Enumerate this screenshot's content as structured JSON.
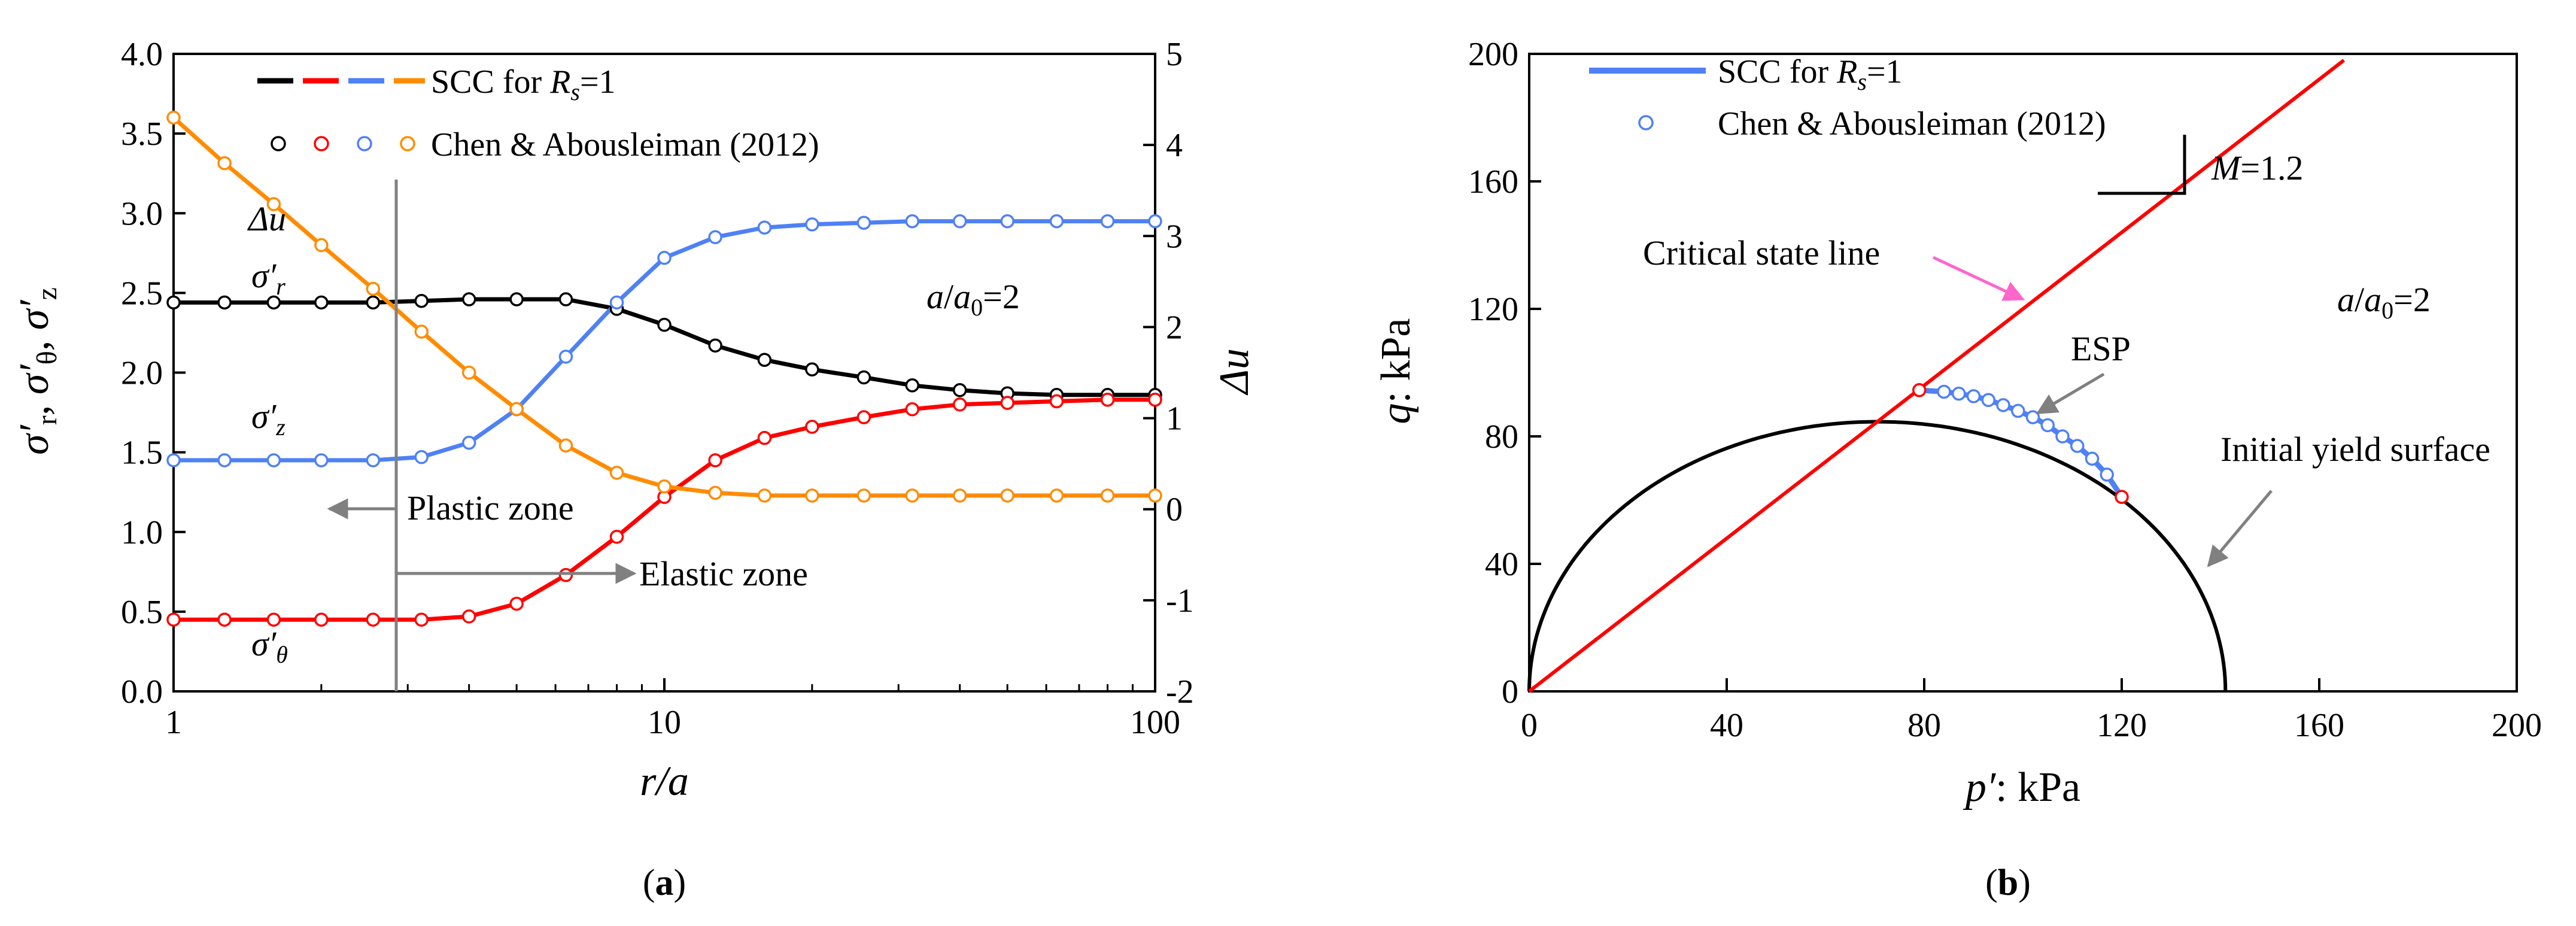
{
  "chart_data": [
    {
      "panel": "a",
      "caption": "(a)",
      "type": "line",
      "x_scale": "log",
      "xlim": [
        1,
        100
      ],
      "ylim": [
        0,
        4
      ],
      "y2lim": [
        -2,
        5
      ],
      "xlabel": "r/a",
      "ylabel": "σ'r, σ'θ, σ'z",
      "y2label": "Δu",
      "x_ticks": [
        "1",
        "10",
        "100"
      ],
      "y_ticks": [
        "0.0",
        "0.5",
        "1.0",
        "1.5",
        "2.0",
        "2.5",
        "3.0",
        "3.5",
        "4.0"
      ],
      "y2_ticks": [
        "-2",
        "-1",
        "0",
        "1",
        "2",
        "3",
        "4",
        "5"
      ],
      "legend": {
        "line_label": "SCC for Rs=1",
        "marker_label": "Chen & Abousleiman (2012)",
        "colors": [
          "#000000",
          "#ff0000",
          "#4f81f5",
          "#ff8c00"
        ]
      },
      "series": [
        {
          "name": "σ'r",
          "axis": "left",
          "color": "#000000",
          "x": [
            1,
            1.27,
            1.6,
            2.0,
            2.55,
            3.2,
            4.0,
            5.0,
            6.3,
            8.0,
            10,
            12.7,
            16,
            20,
            25.5,
            32,
            40,
            50,
            63,
            80,
            100
          ],
          "y": [
            2.44,
            2.44,
            2.44,
            2.44,
            2.44,
            2.45,
            2.46,
            2.46,
            2.46,
            2.4,
            2.3,
            2.17,
            2.08,
            2.02,
            1.97,
            1.92,
            1.89,
            1.87,
            1.86,
            1.86,
            1.86
          ]
        },
        {
          "name": "σ'θ",
          "axis": "left",
          "color": "#ff0000",
          "x": [
            1,
            1.27,
            1.6,
            2.0,
            2.55,
            3.2,
            4.0,
            5.0,
            6.3,
            8.0,
            10,
            12.7,
            16,
            20,
            25.5,
            32,
            40,
            50,
            63,
            80,
            100
          ],
          "y": [
            0.45,
            0.45,
            0.45,
            0.45,
            0.45,
            0.45,
            0.47,
            0.55,
            0.73,
            0.97,
            1.22,
            1.45,
            1.59,
            1.66,
            1.72,
            1.77,
            1.8,
            1.81,
            1.82,
            1.83,
            1.83
          ]
        },
        {
          "name": "σ'z",
          "axis": "left",
          "color": "#4f81f5",
          "x": [
            1,
            1.27,
            1.6,
            2.0,
            2.55,
            3.2,
            4.0,
            5.0,
            6.3,
            8.0,
            10,
            12.7,
            16,
            20,
            25.5,
            32,
            40,
            50,
            63,
            80,
            100
          ],
          "y": [
            1.45,
            1.45,
            1.45,
            1.45,
            1.45,
            1.47,
            1.56,
            1.77,
            2.1,
            2.44,
            2.72,
            2.85,
            2.91,
            2.93,
            2.94,
            2.95,
            2.95,
            2.95,
            2.95,
            2.95,
            2.95
          ]
        },
        {
          "name": "Δu",
          "axis": "right",
          "color": "#ff8c00",
          "x": [
            1,
            1.27,
            1.6,
            2.0,
            2.55,
            3.2,
            4.0,
            5.0,
            6.3,
            8.0,
            10,
            12.7,
            16,
            20,
            25.5,
            32,
            40,
            50,
            63,
            80,
            100
          ],
          "y": [
            4.3,
            3.8,
            3.35,
            2.9,
            2.42,
            1.95,
            1.5,
            1.1,
            0.7,
            0.4,
            0.25,
            0.18,
            0.15,
            0.15,
            0.15,
            0.15,
            0.15,
            0.15,
            0.15,
            0.15,
            0.15
          ]
        }
      ],
      "annotations": {
        "du_label": "Δu",
        "sr_label": "σ'r",
        "sz_label": "σ'z",
        "st_label": "σ'θ",
        "plastic": "Plastic zone",
        "elastic": "Elastic zone",
        "ratio": "a/a0=2",
        "boundary_x": 2.7
      }
    },
    {
      "panel": "b",
      "caption": "(b)",
      "type": "line",
      "xlim": [
        0,
        200
      ],
      "ylim": [
        0,
        200
      ],
      "xlabel": "p′: kPa",
      "ylabel": "q: kPa",
      "x_ticks": [
        "0",
        "40",
        "80",
        "120",
        "160",
        "200"
      ],
      "y_ticks": [
        "0",
        "40",
        "80",
        "120",
        "160",
        "200"
      ],
      "legend": {
        "line_label": "SCC for Rs=1",
        "marker_label": "Chen & Abousleiman (2012)"
      },
      "critical_state_line": {
        "M": 1.2,
        "x_end": 165,
        "color": "#ff0000",
        "label": "Critical state line",
        "slope_label": "M=1.2"
      },
      "yield_surface": {
        "center_p": 70.5,
        "semi_major": 70.5,
        "max_q": 84.6,
        "color": "#000000",
        "label": "Initial yield surface"
      },
      "esp": {
        "label": "ESP",
        "color": "#4f81f5",
        "p": [
          120,
          117,
          114,
          111,
          108,
          105,
          102,
          99,
          96,
          93,
          90,
          87,
          84,
          81,
          79
        ],
        "q": [
          61,
          68,
          73,
          77,
          80,
          83.5,
          86,
          88,
          89.8,
          91.4,
          92.6,
          93.4,
          94,
          94.3,
          94.5
        ],
        "marker_p": [
          79,
          84,
          87,
          90,
          93,
          96,
          99,
          102,
          105,
          108,
          111,
          114,
          117,
          120
        ],
        "marker_q": [
          94.5,
          94,
          93.4,
          92.6,
          91.4,
          89.8,
          88,
          86,
          83.5,
          80,
          77,
          73,
          68,
          61
        ]
      },
      "annotations": {
        "ratio": "a/a0=2"
      }
    }
  ]
}
